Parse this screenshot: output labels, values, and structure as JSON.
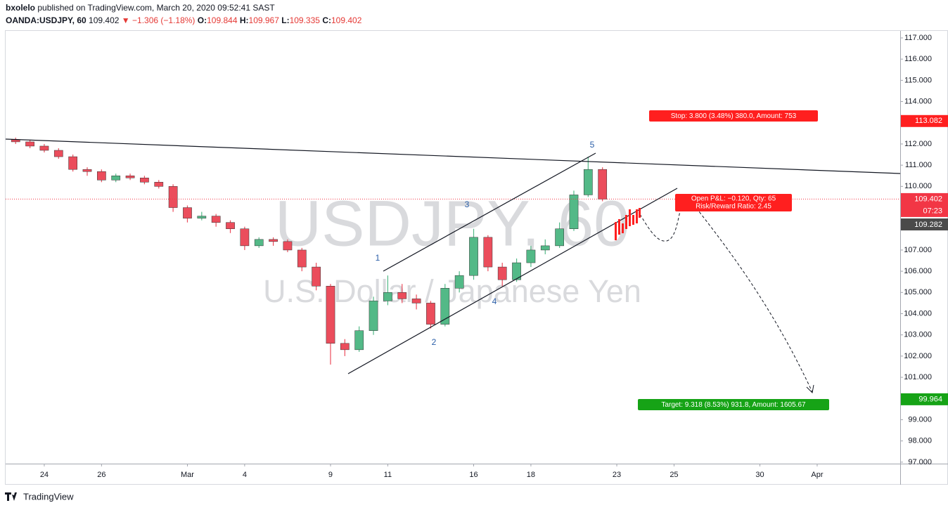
{
  "header": {
    "author": "bxolelo",
    "published": "published on TradingView.com, March 20, 2020 09:52:41 SAST",
    "symbol": "OANDA:USDJPY, 60",
    "last": "109.402",
    "arrow": "▼",
    "change": "−1.306 (−1.18%)",
    "o_label": "O:",
    "o_value": "109.844",
    "h_label": "H:",
    "h_value": "109.967",
    "l_label": "L:",
    "l_value": "109.335",
    "c_label": "C:",
    "c_value": "109.402"
  },
  "chart_data": {
    "type": "candlestick",
    "symbol_watermark": "USDJPY, 60",
    "description_watermark": "U.S. Dollar / Japanese Yen",
    "up_color": "#53b987",
    "down_color": "#eb4d5c",
    "x": [
      -1,
      -0.5,
      0,
      0.5,
      1,
      1.5,
      2,
      2.5,
      3,
      3.5,
      4,
      4.5,
      5,
      5.5,
      6,
      6.5,
      7,
      7.5,
      8,
      8.5,
      9,
      9.5,
      10,
      10.5,
      11,
      11.5,
      12,
      12.5,
      13,
      13.5,
      14,
      14.5,
      15,
      15.5,
      16,
      16.5,
      17,
      17.5,
      18,
      18.5,
      19,
      19.5
    ],
    "open": [
      112.2,
      112.1,
      111.9,
      111.7,
      111.4,
      110.8,
      110.7,
      110.3,
      110.5,
      110.4,
      110.2,
      110.0,
      109.0,
      108.5,
      108.6,
      108.3,
      108.0,
      107.2,
      107.5,
      107.4,
      107.0,
      106.2,
      105.3,
      102.6,
      102.3,
      103.2,
      104.6,
      105.0,
      104.7,
      104.5,
      103.5,
      105.2,
      105.8,
      107.6,
      106.2,
      105.6,
      106.4,
      107.0,
      107.2,
      108.0,
      109.6,
      110.8
    ],
    "high": [
      112.3,
      112.2,
      112.0,
      111.8,
      111.5,
      110.9,
      110.8,
      110.6,
      110.6,
      110.5,
      110.3,
      110.1,
      109.1,
      108.8,
      108.7,
      108.4,
      108.1,
      107.6,
      107.6,
      107.5,
      107.1,
      106.4,
      105.4,
      102.8,
      103.4,
      104.8,
      105.8,
      105.4,
      104.9,
      104.6,
      105.4,
      106.0,
      108.0,
      107.7,
      106.4,
      106.6,
      107.2,
      107.5,
      108.3,
      109.8,
      111.4,
      110.9
    ],
    "low": [
      112.0,
      111.8,
      111.6,
      111.3,
      110.7,
      110.5,
      110.2,
      110.2,
      110.3,
      110.1,
      109.9,
      108.8,
      108.3,
      108.4,
      108.1,
      107.8,
      107.0,
      107.1,
      107.2,
      106.9,
      106.0,
      105.1,
      101.6,
      102.0,
      102.2,
      103.0,
      104.4,
      104.5,
      104.2,
      103.3,
      103.4,
      105.0,
      105.6,
      106.0,
      105.3,
      105.5,
      106.2,
      106.8,
      107.1,
      107.9,
      109.5,
      109.3
    ],
    "close": [
      112.1,
      111.9,
      111.7,
      111.4,
      110.8,
      110.7,
      110.3,
      110.5,
      110.4,
      110.2,
      110.0,
      109.0,
      108.5,
      108.6,
      108.3,
      108.0,
      107.2,
      107.5,
      107.4,
      107.0,
      106.2,
      105.3,
      102.6,
      102.3,
      103.2,
      104.6,
      105.0,
      104.7,
      104.5,
      103.5,
      105.2,
      105.8,
      107.6,
      106.2,
      105.6,
      106.4,
      107.0,
      107.2,
      108.0,
      109.6,
      110.8,
      109.4
    ],
    "xlim": [
      -1.35,
      29.9
    ],
    "xticks": [
      {
        "value": 0,
        "label": "24"
      },
      {
        "value": 2,
        "label": "26"
      },
      {
        "value": 5,
        "label": "Mar"
      },
      {
        "value": 7,
        "label": "4"
      },
      {
        "value": 10,
        "label": "9"
      },
      {
        "value": 12,
        "label": "11"
      },
      {
        "value": 15,
        "label": "16"
      },
      {
        "value": 17,
        "label": "18"
      },
      {
        "value": 20,
        "label": "23"
      },
      {
        "value": 22,
        "label": "25"
      },
      {
        "value": 25,
        "label": "30"
      },
      {
        "value": 27,
        "label": "Apr"
      }
    ],
    "ylim": [
      96.93,
      117.33
    ],
    "yticks": [
      {
        "value": 97,
        "label": "97.000"
      },
      {
        "value": 98,
        "label": "98.000"
      },
      {
        "value": 99,
        "label": "99.000"
      },
      {
        "value": 100,
        "label": "100.000"
      },
      {
        "value": 101,
        "label": "101.000"
      },
      {
        "value": 102,
        "label": "102.000"
      },
      {
        "value": 103,
        "label": "103.000"
      },
      {
        "value": 104,
        "label": "104.000"
      },
      {
        "value": 105,
        "label": "105.000"
      },
      {
        "value": 106,
        "label": "106.000"
      },
      {
        "value": 107,
        "label": "107.000"
      },
      {
        "value": 110,
        "label": "110.000"
      },
      {
        "value": 111,
        "label": "111.000"
      },
      {
        "value": 112,
        "label": "112.000"
      },
      {
        "value": 113,
        "label": "113.000"
      },
      {
        "value": 114,
        "label": "114.000"
      },
      {
        "value": 115,
        "label": "115.000"
      },
      {
        "value": 116,
        "label": "116.000"
      },
      {
        "value": 117,
        "label": "117.000"
      }
    ],
    "price_lines": [
      {
        "value": 113.082,
        "color": "#ff1f1f"
      },
      {
        "value": 109.402,
        "color": "#f23645"
      },
      {
        "value": 99.964,
        "color": "#16a316"
      }
    ],
    "countdown": "07:23",
    "projection_label": "109.282",
    "stop_label": "Stop: 3.800 (3.48%) 380.0, Amount: 753",
    "pnl_label": "Open P&L: −0.120, Qty: 65",
    "rr_label": "Risk/Reward Ratio: 2.45",
    "target_label": "Target: 9.318 (8.53%) 931.8, Amount: 1605.67",
    "waves": [
      "1",
      "2",
      "3",
      "4",
      "5"
    ]
  },
  "footer": "TradingView"
}
